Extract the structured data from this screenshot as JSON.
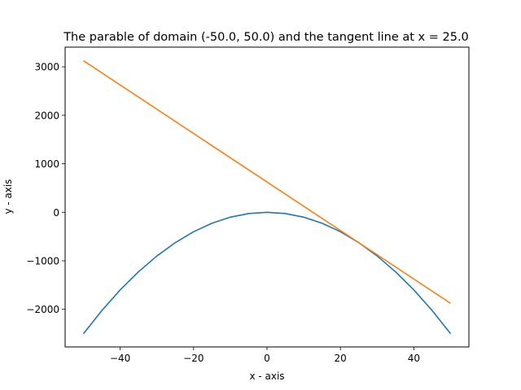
{
  "chart_data": {
    "type": "line",
    "title": "The parable of domain (-50.0, 50.0) and the tangent line at x = 25.0",
    "xlabel": "x - axis",
    "ylabel": "y - axis",
    "xlim": [
      -55,
      55
    ],
    "ylim": [
      -2775,
      3405
    ],
    "xticks": [
      -40,
      -20,
      0,
      20,
      40
    ],
    "xtick_labels": [
      "−40",
      "−20",
      "0",
      "20",
      "40"
    ],
    "yticks": [
      -2000,
      -1000,
      0,
      1000,
      2000,
      3000
    ],
    "ytick_labels": [
      "−2000",
      "−1000",
      "0",
      "1000",
      "2000",
      "3000"
    ],
    "grid": false,
    "series": [
      {
        "color": "#1f77b4",
        "points": [
          [
            -50,
            -2500
          ],
          [
            -45,
            -2025
          ],
          [
            -40,
            -1600
          ],
          [
            -35,
            -1225
          ],
          [
            -30,
            -900
          ],
          [
            -25,
            -625
          ],
          [
            -20,
            -400
          ],
          [
            -15,
            -225
          ],
          [
            -10,
            -100
          ],
          [
            -5,
            -25
          ],
          [
            0,
            0
          ],
          [
            5,
            -25
          ],
          [
            10,
            -100
          ],
          [
            15,
            -225
          ],
          [
            20,
            -400
          ],
          [
            25,
            -625
          ],
          [
            30,
            -900
          ],
          [
            35,
            -1225
          ],
          [
            40,
            -1600
          ],
          [
            45,
            -2025
          ],
          [
            50,
            -2500
          ]
        ]
      },
      {
        "color": "#ff7f0e",
        "points": [
          [
            -50,
            3125
          ],
          [
            50,
            -1875
          ]
        ]
      }
    ]
  }
}
